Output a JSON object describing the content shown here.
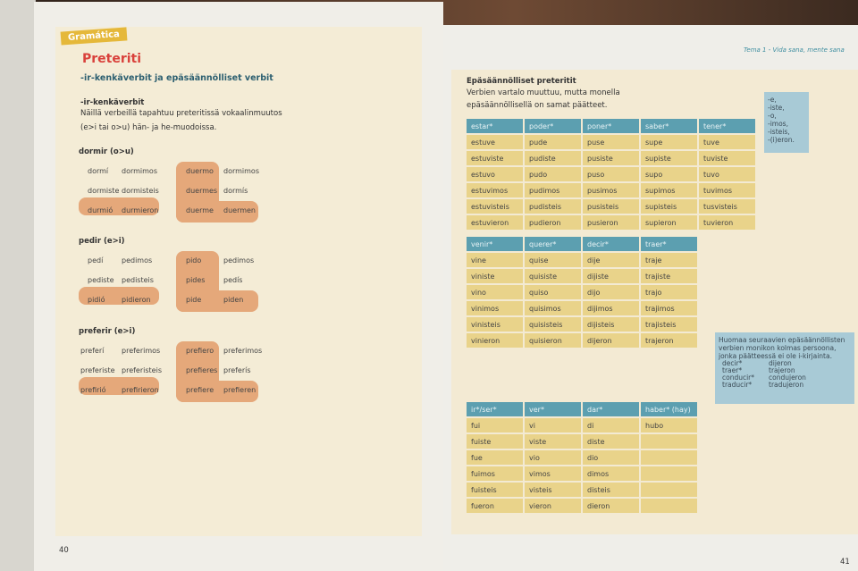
{
  "left_page": {
    "tag": "Gramática",
    "title": "Preteriti",
    "subtitle": "-ir-kenkäverbit ja epäsäännölliset verbit",
    "section": "-ir-kenkäverbit",
    "desc_1": "Näillä verbeillä tapahtuu preteritissä vokaalinmuutos",
    "desc_2": "(e>i tai o>u) hän- ja he-muodoissa.",
    "page_number": "40",
    "groups": [
      {
        "label": "dormir (o>u)",
        "preterite": [
          "dormí",
          "dormimos",
          "dormiste",
          "dormisteis",
          "durmió",
          "durmieron"
        ],
        "present": [
          "duermo",
          "dormimos",
          "duermes",
          "dormís",
          "duerme",
          "duermen"
        ]
      },
      {
        "label": "pedir (e>i)",
        "preterite": [
          "pedí",
          "pedimos",
          "pediste",
          "pedisteis",
          "pidió",
          "pidieron"
        ],
        "present": [
          "pido",
          "pedimos",
          "pides",
          "pedís",
          "pide",
          "piden"
        ]
      },
      {
        "label": "preferir (e>i)",
        "preterite": [
          "preferí",
          "preferimos",
          "preferiste",
          "preferisteis",
          "prefirió",
          "prefirieron"
        ],
        "present": [
          "prefiero",
          "preferimos",
          "prefieres",
          "preferís",
          "prefiere",
          "prefieren"
        ]
      }
    ]
  },
  "right_page": {
    "running_head": "Tema 1 - Vida sana, mente sana",
    "heading": "Epäsäännölliset preteritit",
    "intro_1": "Verbien vartalo muuttuu, mutta monella",
    "intro_2": "epäsäännöllisellä on samat päätteet.",
    "endings": [
      "-e,",
      "-iste,",
      "-o,",
      "-imos,",
      "-isteis,",
      "-(i)eron."
    ],
    "note": {
      "lines": [
        "Huomaa seuraavien epäsäännöllisten",
        "verbien monikon kolmas persoona,",
        "jonka päätteessä ei ole i-kirjainta."
      ],
      "pairs": [
        [
          "decir*",
          "dijeron"
        ],
        [
          "traer*",
          "trajeron"
        ],
        [
          "conducir*",
          "condujeron"
        ],
        [
          "traducir*",
          "tradujeron"
        ]
      ]
    },
    "page_number": "41",
    "tables": [
      {
        "headers": [
          "estar*",
          "poder*",
          "poner*",
          "saber*",
          "tener*"
        ],
        "rows": [
          [
            "estuve",
            "pude",
            "puse",
            "supe",
            "tuve"
          ],
          [
            "estuviste",
            "pudiste",
            "pusiste",
            "supiste",
            "tuviste"
          ],
          [
            "estuvo",
            "pudo",
            "puso",
            "supo",
            "tuvo"
          ],
          [
            "estuvimos",
            "pudimos",
            "pusimos",
            "supimos",
            "tuvimos"
          ],
          [
            "estuvisteis",
            "pudisteis",
            "pusisteis",
            "supisteis",
            "tusvisteis"
          ],
          [
            "estuvieron",
            "pudieron",
            "pusieron",
            "supieron",
            "tuvieron"
          ]
        ]
      },
      {
        "headers": [
          "venir*",
          "querer*",
          "decir*",
          "traer*"
        ],
        "rows": [
          [
            "vine",
            "quise",
            "dije",
            "traje"
          ],
          [
            "viniste",
            "quisiste",
            "dijiste",
            "trajiste"
          ],
          [
            "vino",
            "quiso",
            "dijo",
            "trajo"
          ],
          [
            "vinimos",
            "quisimos",
            "dijimos",
            "trajimos"
          ],
          [
            "vinisteis",
            "quisisteis",
            "dijisteis",
            "trajisteis"
          ],
          [
            "vinieron",
            "quisieron",
            "dijeron",
            "trajeron"
          ]
        ]
      },
      {
        "headers": [
          "ir*/ser*",
          "ver*",
          "dar*",
          "haber* (hay)"
        ],
        "rows": [
          [
            "fui",
            "vi",
            "di",
            "hubo"
          ],
          [
            "fuiste",
            "viste",
            "diste",
            ""
          ],
          [
            "fue",
            "vio",
            "dio",
            ""
          ],
          [
            "fuimos",
            "vimos",
            "dimos",
            ""
          ],
          [
            "fuisteis",
            "visteis",
            "disteis",
            ""
          ],
          [
            "fueron",
            "vieron",
            "dieron",
            ""
          ]
        ]
      }
    ],
    "colors": {
      "header": "#5c9fb0",
      "cell": "#e9d38a",
      "note": "#a8cad6",
      "blob": "#e5a87a"
    }
  }
}
